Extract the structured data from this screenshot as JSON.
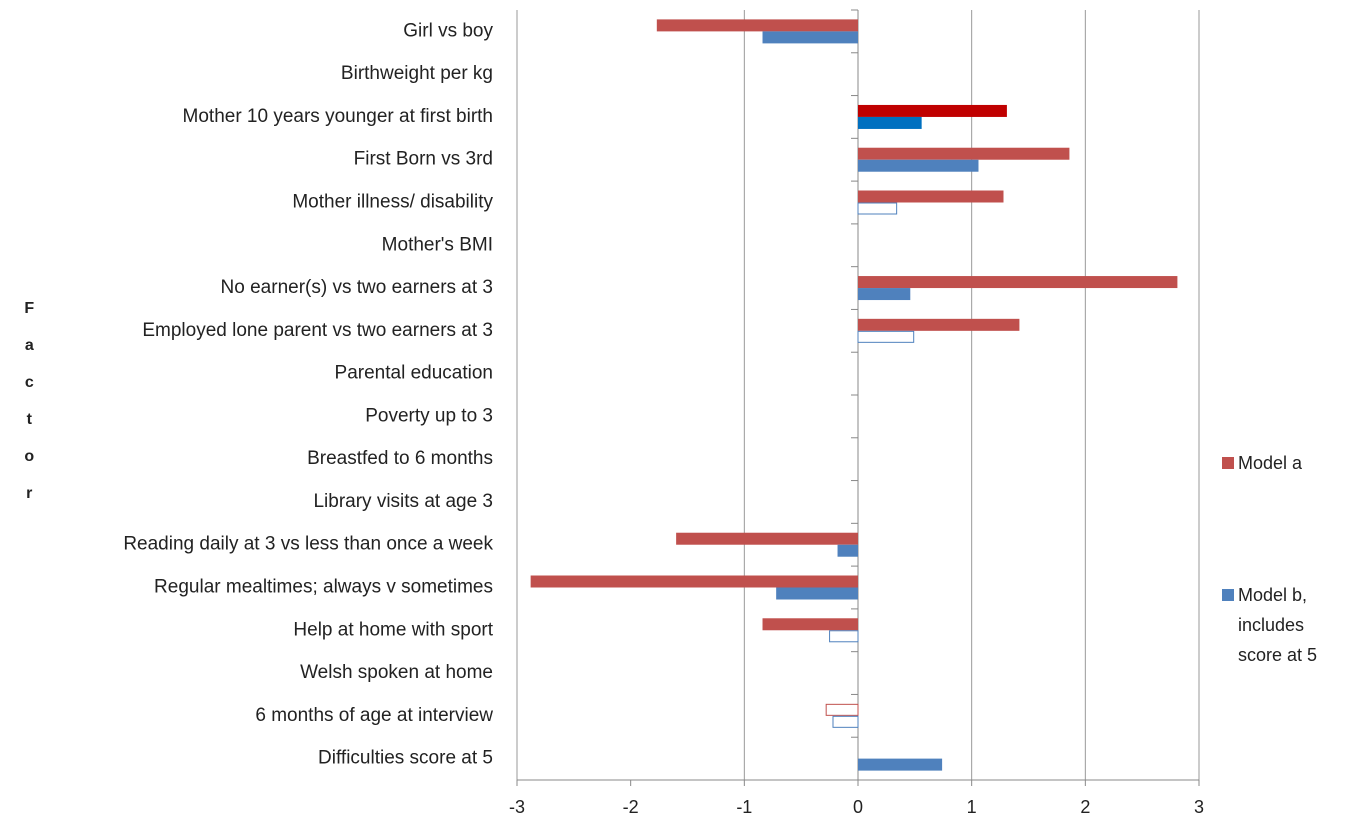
{
  "chart_data": {
    "type": "barh",
    "y_label": "Factor",
    "categories": [
      "Girl vs boy",
      "Birthweight per kg",
      "Mother 10 years younger at first birth",
      "First Born vs 3rd",
      "Mother illness/ disability",
      "Mother's BMI",
      "No earner(s) vs two earners at 3",
      "Employed lone parent vs two earners at 3",
      "Parental education",
      "Poverty up to 3",
      "Breastfed to 6 months",
      "Library visits at age 3",
      "Reading daily at 3 vs less than once a week",
      "Regular mealtimes; always v sometimes",
      "Help at home with sport",
      "Welsh spoken at home",
      "6 months of age at interview",
      "Difficulties score at 5"
    ],
    "series": [
      {
        "name": "Model a",
        "color": "#c0504d",
        "highlight_color": "#c00000",
        "values": [
          -1.77,
          null,
          1.31,
          1.86,
          1.28,
          null,
          2.81,
          1.42,
          null,
          null,
          null,
          null,
          -1.6,
          -2.88,
          -0.84,
          null,
          -0.28,
          null
        ],
        "outline": [
          false,
          false,
          false,
          false,
          false,
          false,
          false,
          false,
          false,
          false,
          false,
          false,
          false,
          false,
          false,
          false,
          true,
          false
        ],
        "highlight": [
          false,
          false,
          true,
          false,
          false,
          false,
          false,
          false,
          false,
          false,
          false,
          false,
          false,
          false,
          false,
          false,
          false,
          false
        ]
      },
      {
        "name": "Model b, includes score at 5",
        "color": "#4f81bd",
        "highlight_color": "#0070c0",
        "values": [
          -0.84,
          null,
          0.56,
          1.06,
          0.34,
          null,
          0.46,
          0.49,
          null,
          null,
          null,
          null,
          -0.18,
          -0.72,
          -0.25,
          null,
          -0.22,
          0.74
        ],
        "outline": [
          false,
          false,
          false,
          false,
          true,
          false,
          false,
          true,
          false,
          false,
          false,
          false,
          false,
          false,
          true,
          false,
          true,
          false
        ],
        "highlight": [
          false,
          false,
          true,
          false,
          false,
          false,
          false,
          false,
          false,
          false,
          false,
          false,
          false,
          false,
          false,
          false,
          false,
          false
        ]
      }
    ],
    "xlim": [
      -3,
      3
    ],
    "xticks": [
      -3,
      -2,
      -1,
      0,
      1,
      2,
      3
    ],
    "grid_values": [
      -3,
      -1,
      1,
      2,
      3
    ],
    "legend": "right"
  }
}
